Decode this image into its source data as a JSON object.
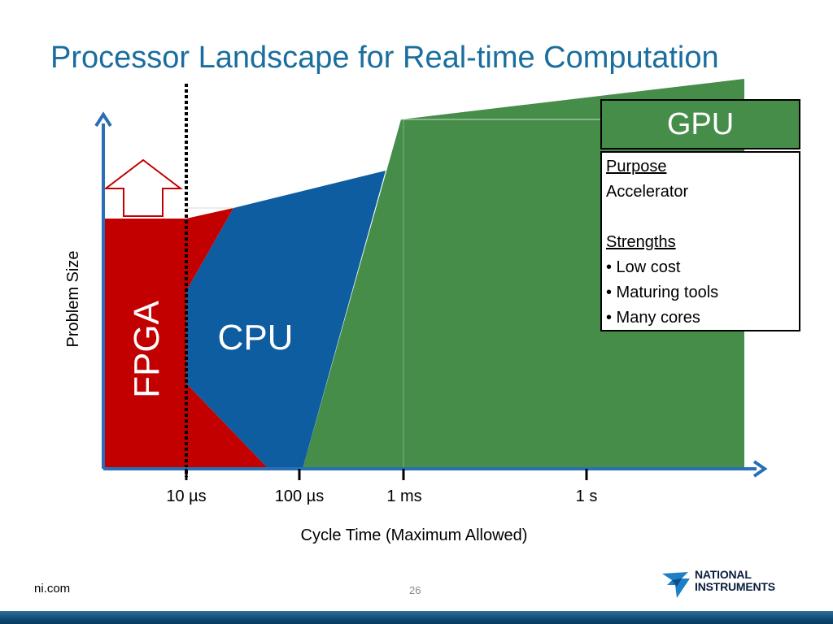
{
  "title": "Processor Landscape for Real-time Computation",
  "regions": {
    "fpga": {
      "label": "FPGA",
      "color": "#c20000"
    },
    "cpu": {
      "label": "CPU",
      "color": "#0e5da1"
    },
    "gpu": {
      "label": "GPU",
      "color": "#458d49"
    }
  },
  "axes": {
    "x_title": "Cycle Time (Maximum Allowed)",
    "y_title": "Problem Size",
    "x_ticks": [
      "10 µs",
      "100 µs",
      "1 ms",
      "1 s"
    ],
    "axis_color": "#2a6fb5"
  },
  "gpu_box": {
    "purpose_heading": "Purpose",
    "purpose": "Accelerator",
    "strengths_heading": "Strengths",
    "strengths": [
      "• Low cost",
      "• Maturing tools",
      "• Many cores"
    ]
  },
  "footer": {
    "site": "ni.com",
    "page": "26",
    "logo_line1": "NATIONAL",
    "logo_line2": "INSTRUMENTS"
  }
}
